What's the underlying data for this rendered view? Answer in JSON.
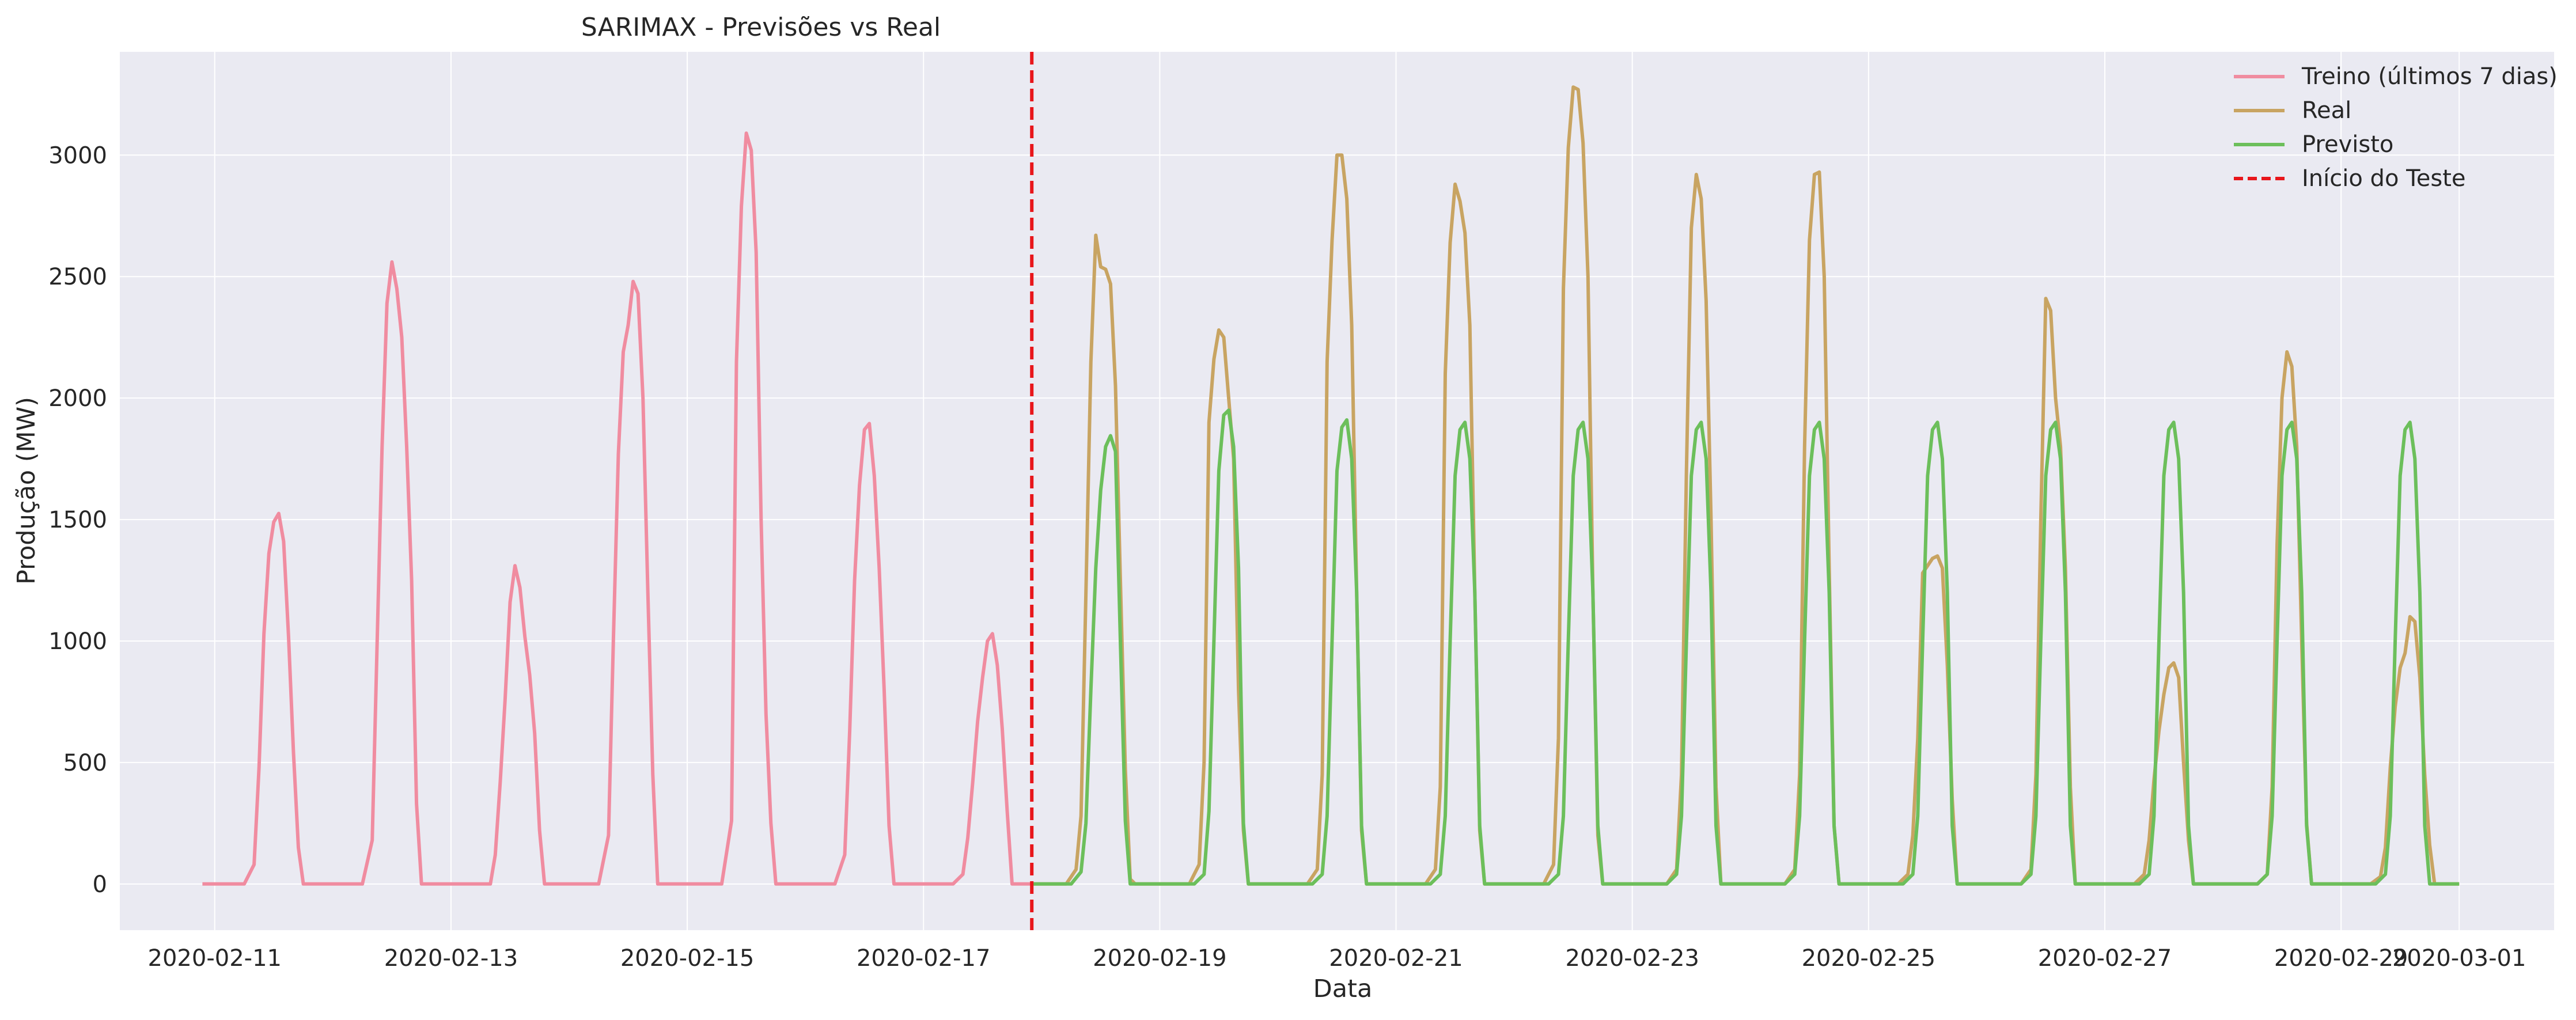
{
  "chart_data": {
    "type": "line",
    "title": "SARIMAX - Previsões vs Real",
    "xlabel": "Data",
    "ylabel": "Produção (MW)",
    "x_ticks": [
      "2020-02-11",
      "2020-02-13",
      "2020-02-15",
      "2020-02-17",
      "2020-02-19",
      "2020-02-21",
      "2020-02-23",
      "2020-02-25",
      "2020-02-27",
      "2020-02-29",
      "2020-03-01"
    ],
    "y_ticks": [
      0,
      500,
      1000,
      1500,
      2000,
      2500,
      3000
    ],
    "xlim": [
      "2020-02-10T04:43",
      "2020-03-01T19:17"
    ],
    "ylim": [
      -190,
      3425
    ],
    "grid": true,
    "background": "#eaeaf2",
    "legend_position": "top-right",
    "test_start": "2020-02-17T22:00",
    "series": [
      {
        "name": "Treino (últimos 7 dias)",
        "color": "#f08ca0",
        "peaks": [
          {
            "date": "2020-02-11",
            "values": [
              80,
              480,
              1030,
              1360,
              1490,
              1525,
              1410,
              1020,
              540,
              150
            ]
          },
          {
            "date": "2020-02-12",
            "values": [
              180,
              1000,
              1800,
              2390,
              2560,
              2450,
              2250,
              1800,
              1250,
              330
            ]
          },
          {
            "date": "2020-02-13",
            "values": [
              0,
              120,
              420,
              760,
              1160,
              1310,
              1220,
              1020,
              860,
              620,
              220
            ]
          },
          {
            "date": "2020-02-14",
            "values": [
              200,
              1010,
              1770,
              2190,
              2300,
              2480,
              2430,
              2000,
              1200,
              450
            ]
          },
          {
            "date": "2020-02-15",
            "values": [
              260,
              2150,
              2790,
              3090,
              3020,
              2600,
              1500,
              700,
              250
            ]
          },
          {
            "date": "2020-02-16",
            "values": [
              120,
              630,
              1250,
              1640,
              1870,
              1895,
              1680,
              1300,
              800,
              240
            ]
          },
          {
            "date": "2020-02-17",
            "values": [
              40,
              190,
              420,
              670,
              850,
              1000,
              1030,
              900,
              640,
              300
            ]
          }
        ]
      },
      {
        "name": "Real",
        "color": "#c8a462",
        "peaks": [
          {
            "date": "2020-02-18",
            "values": [
              60,
              280,
              1200,
              2150,
              2670,
              2540,
              2530,
              2470,
              2050,
              1250,
              470,
              20
            ]
          },
          {
            "date": "2020-02-19",
            "values": [
              80,
              500,
              1900,
              2160,
              2280,
              2250,
              2000,
              1750,
              800,
              220
            ]
          },
          {
            "date": "2020-02-20",
            "values": [
              60,
              450,
              2150,
              2650,
              3000,
              3000,
              2820,
              2300,
              1200,
              220
            ]
          },
          {
            "date": "2020-02-21",
            "values": [
              60,
              400,
              2100,
              2640,
              2880,
              2810,
              2680,
              2300,
              1200,
              220
            ]
          },
          {
            "date": "2020-02-22",
            "values": [
              80,
              600,
              2450,
              3030,
              3280,
              3270,
              3050,
              2500,
              1200,
              200
            ]
          },
          {
            "date": "2020-02-23",
            "values": [
              60,
              450,
              1700,
              2700,
              2920,
              2820,
              2400,
              1500,
              400
            ]
          },
          {
            "date": "2020-02-24",
            "values": [
              60,
              450,
              1800,
              2650,
              2920,
              2930,
              2500,
              1300,
              240
            ]
          },
          {
            "date": "2020-02-25",
            "values": [
              40,
              200,
              600,
              1280,
              1310,
              1340,
              1350,
              1300,
              900,
              350
            ]
          },
          {
            "date": "2020-02-26",
            "values": [
              60,
              450,
              1500,
              2410,
              2360,
              2000,
              1800,
              1300,
              400
            ]
          },
          {
            "date": "2020-02-27",
            "values": [
              40,
              180,
              430,
              630,
              780,
              890,
              910,
              850,
              500,
              180
            ]
          },
          {
            "date": "2020-02-28",
            "values": [
              40,
              400,
              1400,
              2000,
              2190,
              2130,
              1800,
              1000,
              250
            ]
          },
          {
            "date": "2020-02-29",
            "values": [
              30,
              150,
              480,
              730,
              890,
              950,
              1100,
              1080,
              850,
              450,
              160
            ]
          }
        ]
      },
      {
        "name": "Previsto",
        "color": "#6cbf5b",
        "peaks": [
          {
            "date": "2020-02-18",
            "values": [
              50,
              250,
              800,
              1300,
              1620,
              1800,
              1845,
              1780,
              1000,
              260
            ]
          },
          {
            "date": "2020-02-19",
            "values": [
              40,
              300,
              1000,
              1700,
              1930,
              1950,
              1800,
              1300,
              250
            ]
          },
          {
            "date": "2020-02-20",
            "values": [
              40,
              280,
              1000,
              1700,
              1880,
              1910,
              1750,
              1200,
              240
            ]
          },
          {
            "date": "2020-02-21",
            "values": [
              40,
              280,
              1000,
              1680,
              1870,
              1900,
              1750,
              1200,
              240
            ]
          },
          {
            "date": "2020-02-22",
            "values": [
              40,
              280,
              1000,
              1680,
              1870,
              1900,
              1750,
              1200,
              240
            ]
          },
          {
            "date": "2020-02-23",
            "values": [
              40,
              280,
              1000,
              1680,
              1870,
              1900,
              1750,
              1200,
              240
            ]
          },
          {
            "date": "2020-02-24",
            "values": [
              40,
              280,
              1000,
              1680,
              1870,
              1900,
              1750,
              1200,
              240
            ]
          },
          {
            "date": "2020-02-25",
            "values": [
              40,
              280,
              1000,
              1680,
              1870,
              1900,
              1750,
              1200,
              240
            ]
          },
          {
            "date": "2020-02-26",
            "values": [
              40,
              280,
              1000,
              1680,
              1870,
              1900,
              1750,
              1200,
              240
            ]
          },
          {
            "date": "2020-02-27",
            "values": [
              40,
              280,
              1000,
              1680,
              1870,
              1900,
              1750,
              1200,
              240
            ]
          },
          {
            "date": "2020-02-28",
            "values": [
              40,
              280,
              1000,
              1680,
              1870,
              1900,
              1750,
              1200,
              240
            ]
          },
          {
            "date": "2020-02-29",
            "values": [
              40,
              280,
              1000,
              1680,
              1870,
              1900,
              1750,
              1200,
              240
            ]
          }
        ]
      }
    ],
    "legend": [
      {
        "label": "Treino (últimos 7 dias)",
        "color": "#f08ca0",
        "style": "solid"
      },
      {
        "label": "Real",
        "color": "#c8a462",
        "style": "solid"
      },
      {
        "label": "Previsto",
        "color": "#6cbf5b",
        "style": "solid"
      },
      {
        "label": "Início do Teste",
        "color": "#e8161b",
        "style": "dashed"
      }
    ]
  }
}
